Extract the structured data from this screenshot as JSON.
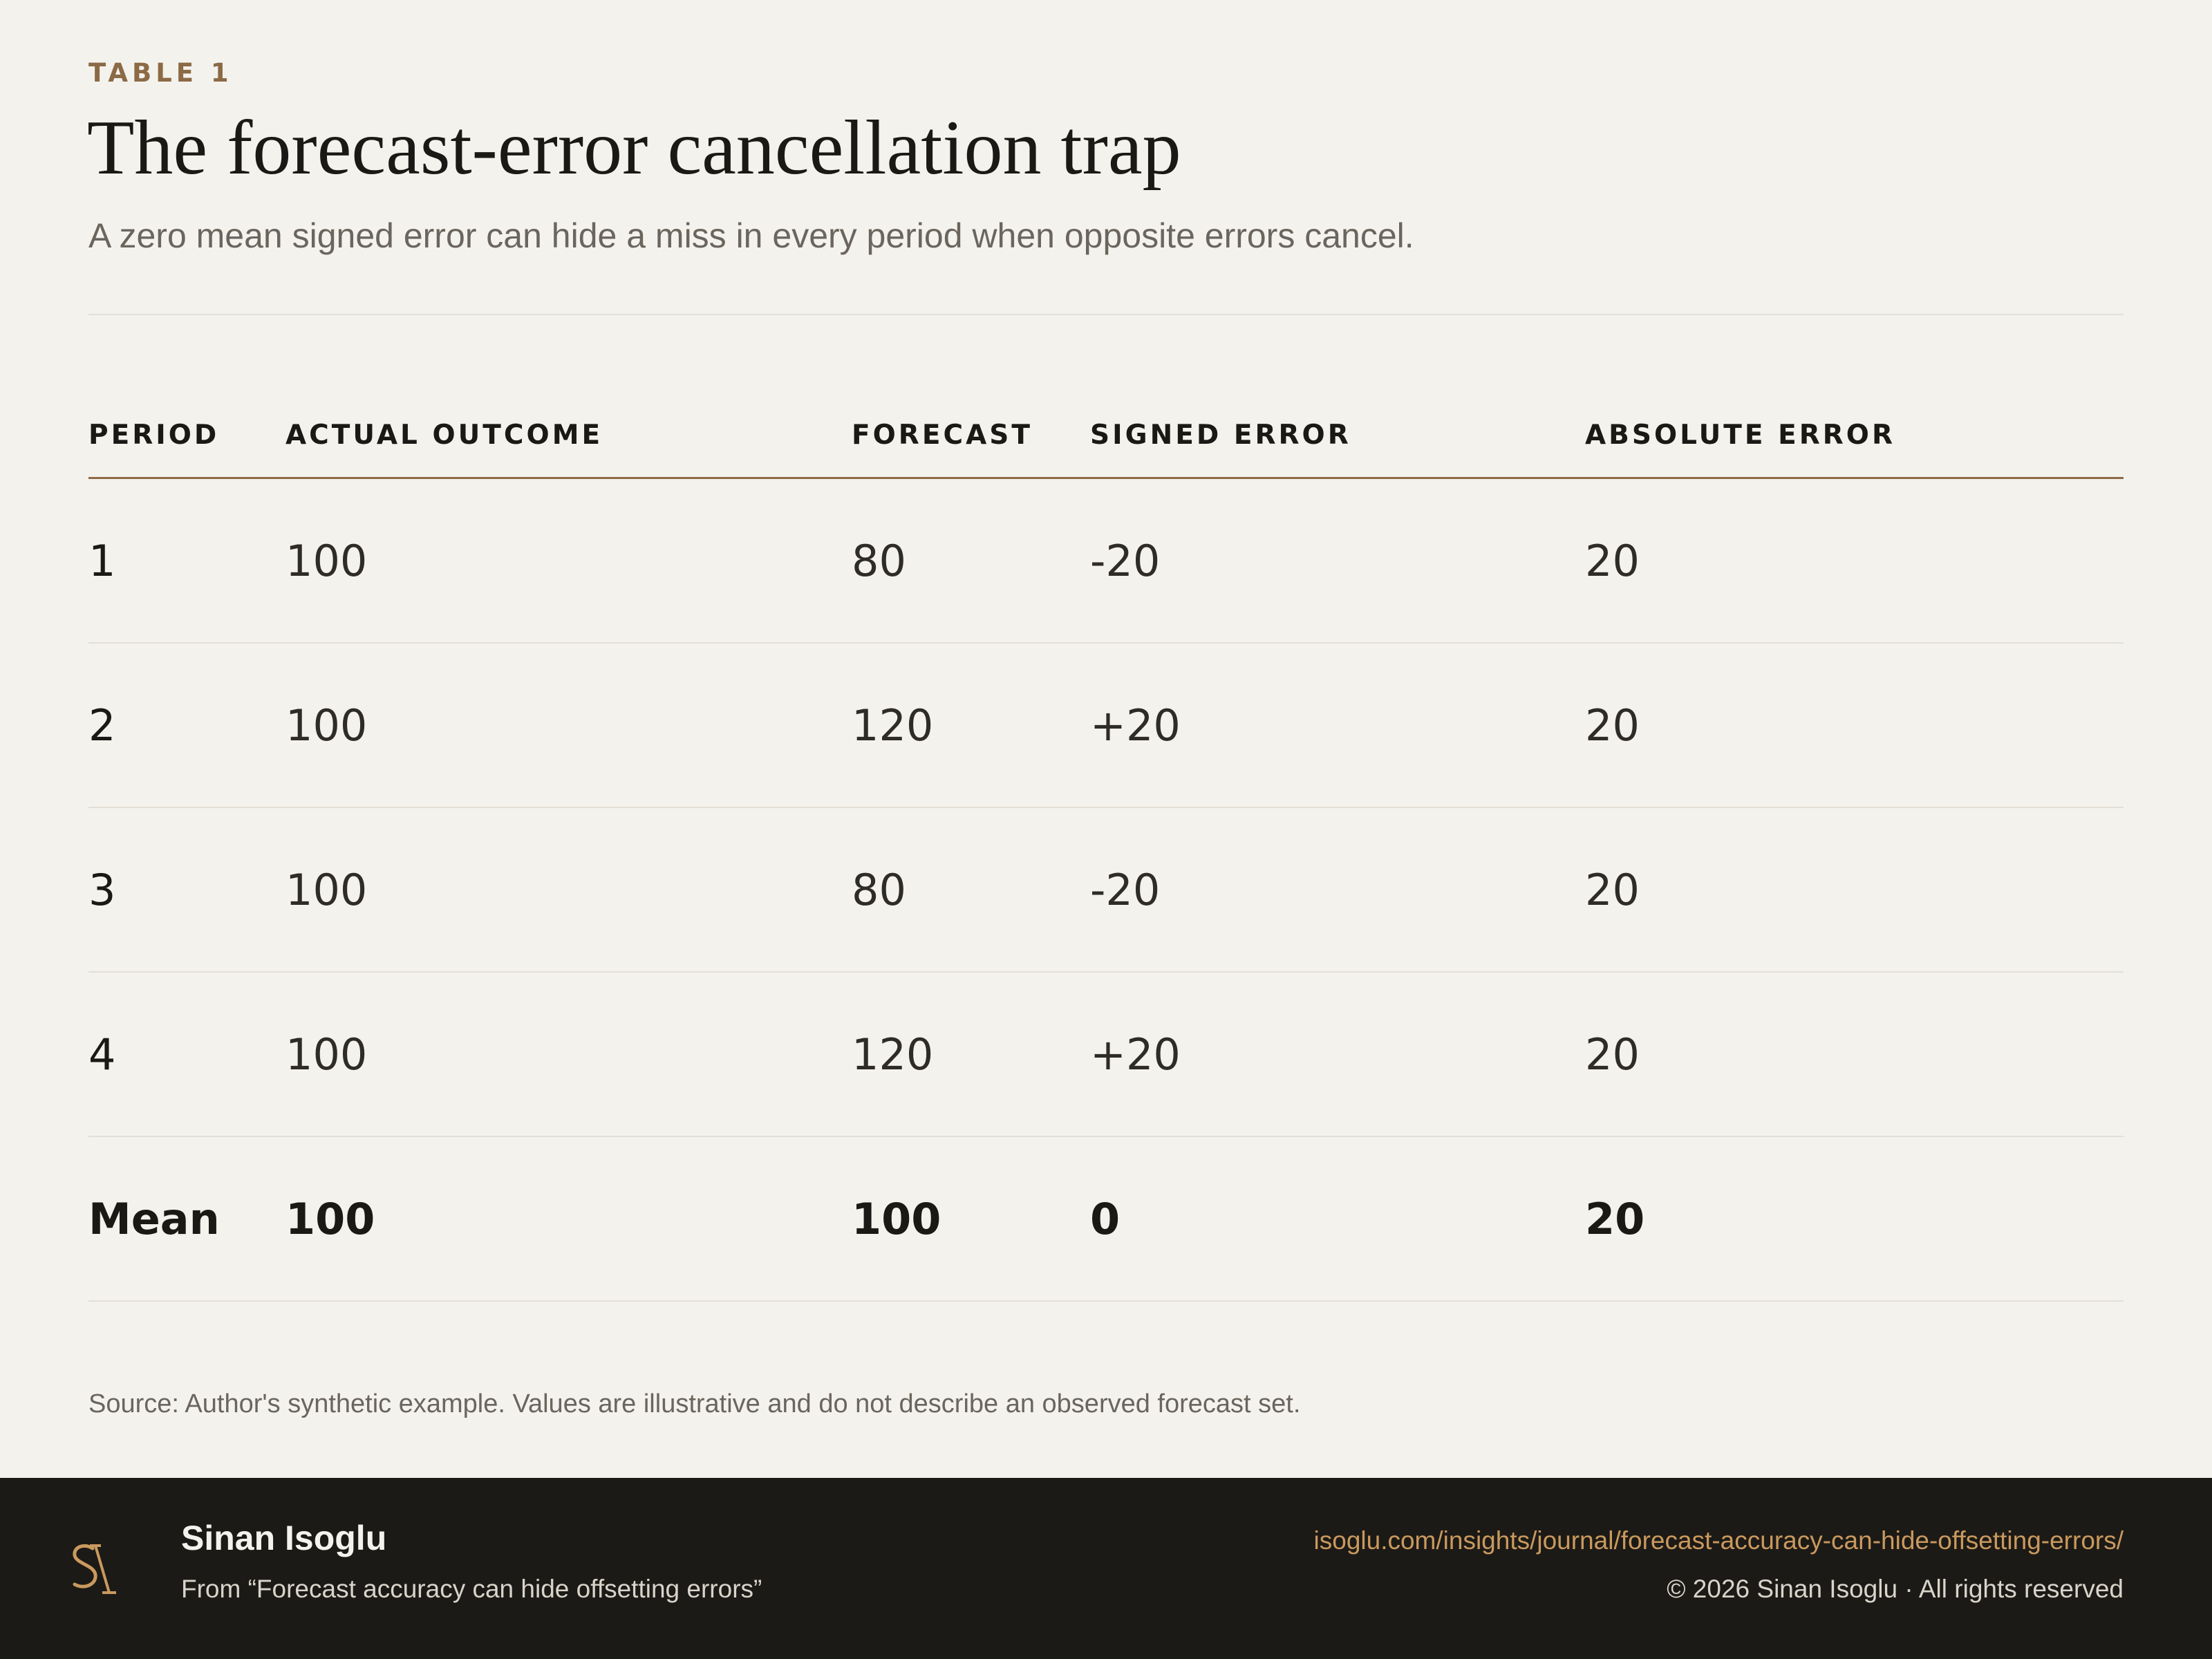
{
  "header": {
    "eyebrow": "TABLE 1",
    "title": "The forecast-error cancellation trap",
    "subtitle": "A zero mean signed error can hide a miss in every period when opposite errors cancel."
  },
  "table": {
    "columns": [
      "PERIOD",
      "ACTUAL OUTCOME",
      "FORECAST",
      "SIGNED ERROR",
      "ABSOLUTE ERROR"
    ],
    "rows": [
      [
        "1",
        "100",
        "80",
        "-20",
        "20"
      ],
      [
        "2",
        "100",
        "120",
        "+20",
        "20"
      ],
      [
        "3",
        "100",
        "80",
        "-20",
        "20"
      ],
      [
        "4",
        "100",
        "120",
        "+20",
        "20"
      ]
    ],
    "mean": [
      "Mean",
      "100",
      "100",
      "0",
      "20"
    ]
  },
  "source": "Source: Author's synthetic example. Values are illustrative and do not describe an observed forecast set.",
  "footer": {
    "logo_icon": "si-monogram-logo",
    "author": "Sinan Isoglu",
    "from": "From “Forecast accuracy can hide offsetting errors”",
    "url": "isoglu.com/insights/journal/forecast-accuracy-can-hide-offsetting-errors/",
    "copyright": "© 2026 Sinan Isoglu · All rights reserved"
  },
  "colors": {
    "background": "#f4f2ed",
    "accent": "#8b6a45",
    "footer_bg": "#1c1a16",
    "link": "#c9995e"
  }
}
